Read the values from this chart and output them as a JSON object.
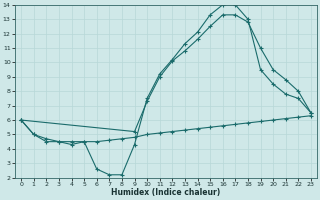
{
  "xlabel": "Humidex (Indice chaleur)",
  "bg_color": "#cfe8e8",
  "grid_color": "#b8d8d8",
  "line_color": "#1a6b6b",
  "xlim": [
    -0.5,
    23.5
  ],
  "ylim": [
    2,
    14
  ],
  "xticks": [
    0,
    1,
    2,
    3,
    4,
    5,
    6,
    7,
    8,
    9,
    10,
    11,
    12,
    13,
    14,
    15,
    16,
    17,
    18,
    19,
    20,
    21,
    22,
    23
  ],
  "yticks": [
    2,
    3,
    4,
    5,
    6,
    7,
    8,
    9,
    10,
    11,
    12,
    13,
    14
  ],
  "line1_x": [
    0,
    1,
    2,
    3,
    4,
    5,
    6,
    7,
    8,
    9,
    10,
    11,
    12,
    13,
    14,
    15,
    16,
    17,
    18,
    19,
    20,
    21,
    22,
    23
  ],
  "line1_y": [
    6.0,
    5.0,
    4.5,
    4.5,
    4.5,
    4.5,
    2.6,
    2.2,
    2.2,
    4.3,
    7.5,
    9.2,
    10.2,
    11.3,
    12.1,
    13.3,
    14.0,
    14.0,
    13.0,
    9.5,
    8.5,
    7.8,
    7.5,
    6.5
  ],
  "line2_x": [
    0,
    1,
    2,
    3,
    4,
    5,
    6,
    7,
    8,
    9,
    10,
    11,
    12,
    13,
    14,
    15,
    16,
    17,
    18,
    19,
    20,
    21,
    22,
    23
  ],
  "line2_y": [
    6.0,
    5.0,
    4.7,
    4.5,
    4.3,
    4.5,
    4.5,
    4.6,
    4.7,
    4.8,
    5.0,
    5.1,
    5.2,
    5.3,
    5.4,
    5.5,
    5.6,
    5.7,
    5.8,
    5.9,
    6.0,
    6.1,
    6.2,
    6.3
  ],
  "line3_x": [
    0,
    9,
    10,
    11,
    12,
    13,
    14,
    15,
    16,
    17,
    18,
    19,
    20,
    21,
    22,
    23
  ],
  "line3_y": [
    6.0,
    5.2,
    7.3,
    9.0,
    10.1,
    10.8,
    11.6,
    12.5,
    13.3,
    13.3,
    12.8,
    11.0,
    9.5,
    8.8,
    8.0,
    6.5
  ]
}
